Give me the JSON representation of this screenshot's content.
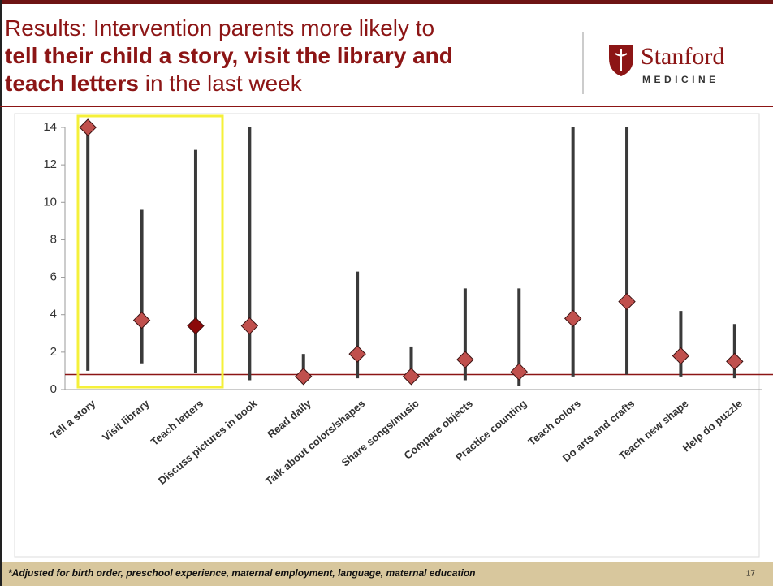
{
  "header": {
    "title_lines": [
      [
        {
          "text": "Results: Intervention parents more likely to",
          "bold": false
        }
      ],
      [
        {
          "text": "tell their child a story, visit the library and",
          "bold": true
        }
      ],
      [
        {
          "text": "teach letters",
          "bold": true
        },
        {
          "text": " in the last week",
          "bold": false
        }
      ]
    ],
    "logo_name": "Stanford",
    "logo_sub": "MEDICINE"
  },
  "chart_data": {
    "type": "dot-interval",
    "categories": [
      "Tell a story",
      "Visit library",
      "Teach letters",
      "Discuss pictures in book",
      "Read daily",
      "Talk about colors/shapes",
      "Share songs/music",
      "Compare objects",
      "Practice counting",
      "Teach colors",
      "Do arts and crafts",
      "Teach new shape",
      "Help do puzzle"
    ],
    "values": [
      14,
      3.7,
      3.4,
      3.4,
      0.7,
      1.9,
      0.7,
      1.6,
      0.95,
      3.8,
      4.7,
      1.8,
      1.5
    ],
    "low": [
      1.0,
      1.4,
      0.9,
      0.5,
      0.3,
      0.6,
      0.3,
      0.5,
      0.2,
      0.7,
      0.8,
      0.7,
      0.6
    ],
    "high": [
      14,
      9.6,
      12.8,
      14,
      1.9,
      6.3,
      2.3,
      5.4,
      5.4,
      14,
      14,
      4.2,
      3.5
    ],
    "point_colors": [
      "#c0504d",
      "#c0504d",
      "#8b0a0a",
      "#c0504d",
      "#c0504d",
      "#c0504d",
      "#c0504d",
      "#c0504d",
      "#c0504d",
      "#c0504d",
      "#c0504d",
      "#c0504d",
      "#c0504d"
    ],
    "interval_color": "#3a3a3a",
    "reference_line": 0.8,
    "reference_color": "#8c1515",
    "ylim": [
      0,
      14
    ],
    "yticks": [
      0,
      2,
      4,
      6,
      8,
      10,
      12,
      14
    ]
  },
  "footer": {
    "note": "*Adjusted for birth order, preschool experience, maternal employment, language, maternal education",
    "page": "17"
  }
}
